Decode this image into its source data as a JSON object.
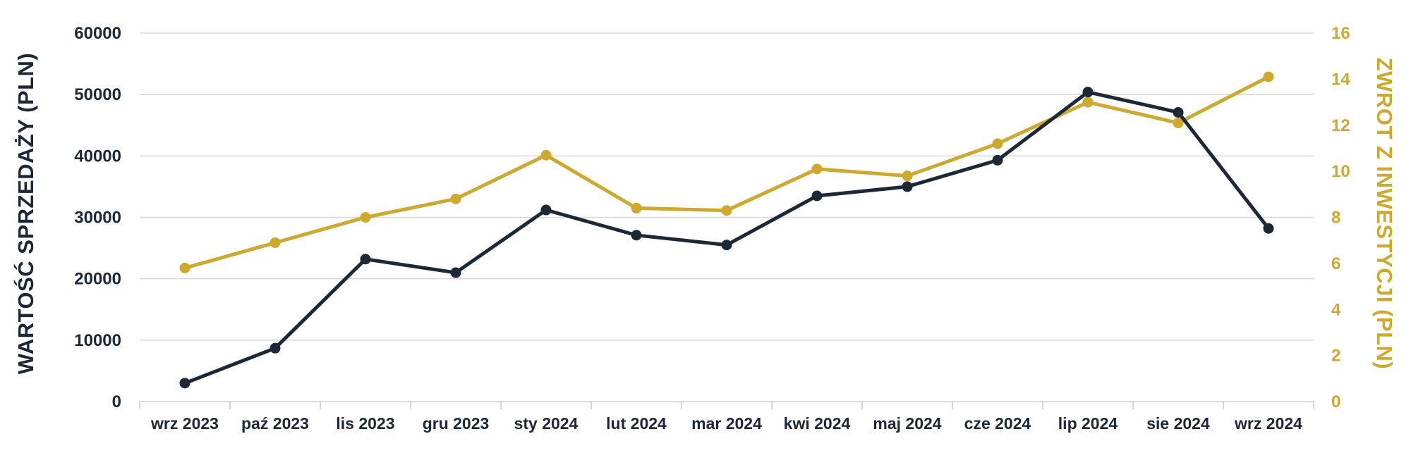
{
  "chart_data": {
    "type": "line",
    "categories": [
      "wrz 2023",
      "paź 2023",
      "lis 2023",
      "gru 2023",
      "sty 2024",
      "lut 2024",
      "mar 2024",
      "kwi 2024",
      "maj 2024",
      "cze 2024",
      "lip 2024",
      "sie 2024",
      "wrz 2024"
    ],
    "series": [
      {
        "axis": "left",
        "color": "#1c2836",
        "values": [
          3000,
          8700,
          23200,
          21000,
          31200,
          27100,
          25500,
          33500,
          35000,
          39300,
          50400,
          47100,
          28200
        ]
      },
      {
        "axis": "right",
        "color": "#cda92f",
        "values": [
          5.8,
          6.9,
          8.0,
          8.8,
          10.7,
          8.4,
          8.3,
          10.1,
          9.8,
          11.2,
          13.0,
          12.1,
          14.1
        ]
      }
    ],
    "title": "",
    "ylabel": "WARTOŚĆ SPRZEDAŻY (PLN)",
    "y2label": "ZWROT Z INWESTYCJI (PLN)",
    "ylim": [
      0,
      60000
    ],
    "y2lim": [
      0,
      16
    ],
    "yticks": [
      "0",
      "10000",
      "20000",
      "30000",
      "40000",
      "50000",
      "60000"
    ],
    "y2ticks": [
      "0",
      "2",
      "4",
      "6",
      "8",
      "10",
      "12",
      "14",
      "16"
    ],
    "grid": true,
    "legend": "none"
  }
}
